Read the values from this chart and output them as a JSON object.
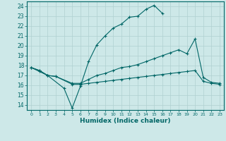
{
  "xlabel": "Humidex (Indice chaleur)",
  "xlim": [
    -0.5,
    23.5
  ],
  "ylim": [
    13.5,
    24.5
  ],
  "yticks": [
    14,
    15,
    16,
    17,
    18,
    19,
    20,
    21,
    22,
    23,
    24
  ],
  "xticks": [
    0,
    1,
    2,
    3,
    4,
    5,
    6,
    7,
    8,
    9,
    10,
    11,
    12,
    13,
    14,
    15,
    16,
    17,
    18,
    19,
    20,
    21,
    22,
    23
  ],
  "bg_color": "#cde8e8",
  "grid_color": "#b0d0d0",
  "line_color": "#006666",
  "lines": [
    {
      "x": [
        0,
        1,
        2,
        4,
        5,
        6,
        7,
        8,
        9,
        10,
        11,
        12,
        13,
        14,
        15,
        16
      ],
      "y": [
        17.8,
        17.5,
        17.0,
        15.7,
        13.7,
        15.9,
        18.4,
        20.1,
        21.0,
        21.8,
        22.2,
        22.9,
        23.0,
        23.7,
        24.1,
        23.3
      ]
    },
    {
      "x": [
        0,
        1,
        2,
        3,
        5,
        6,
        7,
        8,
        9,
        10,
        11,
        12,
        13,
        14,
        15,
        16,
        17,
        18,
        19,
        20,
        21,
        22,
        23
      ],
      "y": [
        17.8,
        17.5,
        17.0,
        16.9,
        16.2,
        16.2,
        16.6,
        17.0,
        17.2,
        17.5,
        17.8,
        17.9,
        18.1,
        18.4,
        18.7,
        19.0,
        19.3,
        19.6,
        19.2,
        20.7,
        16.8,
        16.3,
        16.2
      ]
    },
    {
      "x": [
        0,
        1,
        2,
        3,
        5,
        6,
        7,
        8,
        9,
        10,
        11,
        12,
        13,
        14,
        15,
        16,
        17,
        18,
        19,
        20,
        21,
        22,
        23
      ],
      "y": [
        17.8,
        17.4,
        17.0,
        16.9,
        16.1,
        16.1,
        16.2,
        16.3,
        16.4,
        16.5,
        16.6,
        16.7,
        16.8,
        16.9,
        17.0,
        17.1,
        17.2,
        17.3,
        17.4,
        17.5,
        16.4,
        16.2,
        16.1
      ]
    }
  ]
}
